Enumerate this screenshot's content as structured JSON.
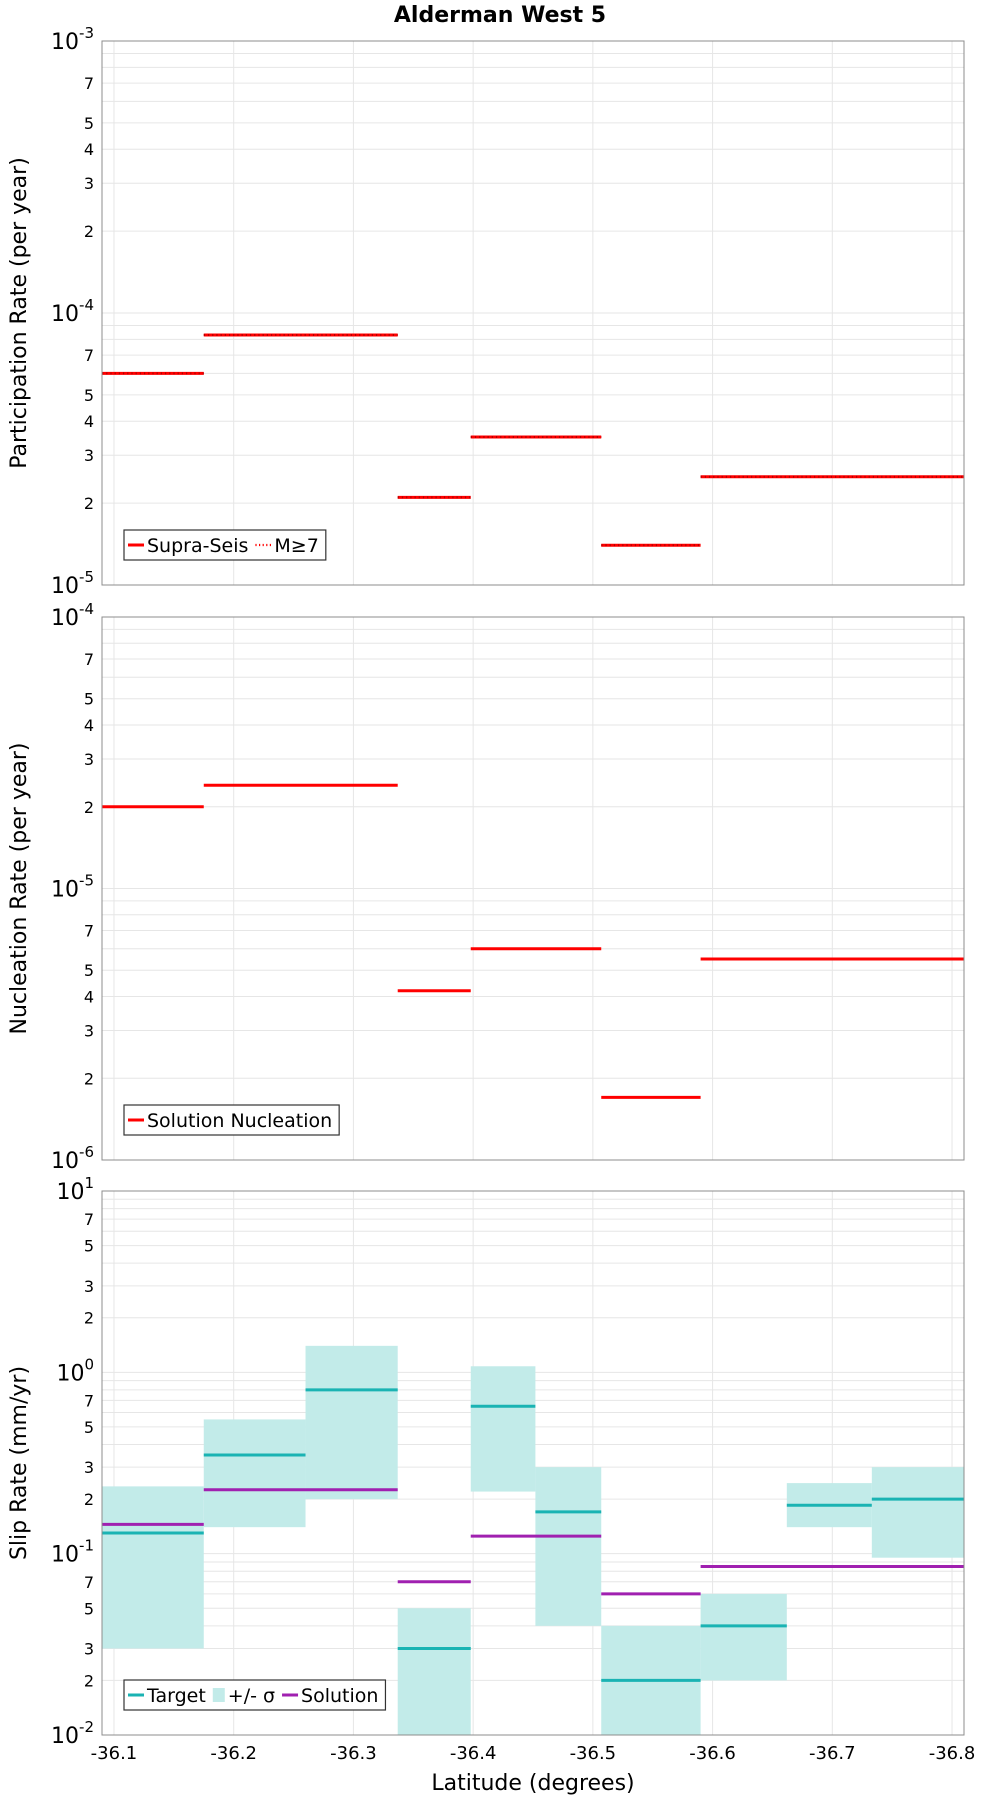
{
  "figure_title": "Alderman West 5",
  "xlabel": "Latitude (degrees)",
  "colors": {
    "red": "#ff0000",
    "teal": "#1ab3b3",
    "teal_band": "#c2ebe9",
    "magenta": "#a020b0"
  },
  "chart_data": [
    {
      "type": "line",
      "id": "participation",
      "title": "Alderman West 5",
      "ylabel": "Participation Rate (per year)",
      "xlabel": "Latitude (degrees)",
      "yscale": "log",
      "ylim": [
        1e-05,
        0.001
      ],
      "xlim": [
        -36.09,
        -36.81
      ],
      "decade_exponents": [
        -5,
        -4,
        -3
      ],
      "minor_tick_labels": [
        "2",
        "3",
        "4",
        "5",
        "7"
      ],
      "legend": {
        "position": "bottom-left",
        "entries": [
          "Supra-Seis",
          "M≥7"
        ]
      },
      "series": [
        {
          "name": "Supra-Seis",
          "color": "#ff0000",
          "segments": [
            {
              "x0": -36.09,
              "x1": -36.175,
              "y": 6e-05
            },
            {
              "x0": -36.175,
              "x1": -36.337,
              "y": 8.3e-05
            },
            {
              "x0": -36.337,
              "x1": -36.398,
              "y": 2.1e-05
            },
            {
              "x0": -36.398,
              "x1": -36.507,
              "y": 3.5e-05
            },
            {
              "x0": -36.507,
              "x1": -36.59,
              "y": 1.4e-05
            },
            {
              "x0": -36.59,
              "x1": -36.81,
              "y": 2.5e-05
            }
          ]
        },
        {
          "name": "M≥7",
          "color": "#ff0000",
          "style": "dotted",
          "segments": [
            {
              "x0": -36.09,
              "x1": -36.175,
              "y": 6e-05
            },
            {
              "x0": -36.175,
              "x1": -36.337,
              "y": 8.3e-05
            },
            {
              "x0": -36.337,
              "x1": -36.398,
              "y": 2.1e-05
            },
            {
              "x0": -36.398,
              "x1": -36.507,
              "y": 3.5e-05
            },
            {
              "x0": -36.507,
              "x1": -36.59,
              "y": 1.4e-05
            },
            {
              "x0": -36.59,
              "x1": -36.81,
              "y": 2.5e-05
            }
          ]
        }
      ]
    },
    {
      "type": "line",
      "id": "nucleation",
      "ylabel": "Nucleation Rate (per year)",
      "xlabel": "Latitude (degrees)",
      "yscale": "log",
      "ylim": [
        1e-06,
        0.0001
      ],
      "xlim": [
        -36.09,
        -36.81
      ],
      "decade_exponents": [
        -6,
        -5,
        -4
      ],
      "minor_tick_labels": [
        "2",
        "3",
        "4",
        "5",
        "7"
      ],
      "legend": {
        "position": "bottom-left",
        "entries": [
          "Solution Nucleation"
        ]
      },
      "series": [
        {
          "name": "Solution Nucleation",
          "color": "#ff0000",
          "segments": [
            {
              "x0": -36.09,
              "x1": -36.175,
              "y": 2e-05
            },
            {
              "x0": -36.175,
              "x1": -36.337,
              "y": 2.4e-05
            },
            {
              "x0": -36.337,
              "x1": -36.398,
              "y": 4.2e-06
            },
            {
              "x0": -36.398,
              "x1": -36.507,
              "y": 6e-06
            },
            {
              "x0": -36.507,
              "x1": -36.59,
              "y": 1.7e-06
            },
            {
              "x0": -36.59,
              "x1": -36.81,
              "y": 5.5e-06
            }
          ]
        }
      ]
    },
    {
      "type": "line",
      "id": "slip",
      "ylabel": "Slip Rate (mm/yr)",
      "xlabel": "Latitude (degrees)",
      "yscale": "log",
      "ylim": [
        0.01,
        10
      ],
      "xlim": [
        -36.09,
        -36.81
      ],
      "decade_exponents": [
        -2,
        -1,
        0,
        1
      ],
      "minor_tick_labels": [
        "2",
        "3",
        "5",
        "7"
      ],
      "x_ticks": [
        "-36.1",
        "-36.2",
        "-36.3",
        "-36.4",
        "-36.5",
        "-36.6",
        "-36.7",
        "-36.8"
      ],
      "x_tick_values": [
        -36.1,
        -36.2,
        -36.3,
        -36.4,
        -36.5,
        -36.6,
        -36.7,
        -36.8
      ],
      "legend": {
        "position": "bottom-left",
        "entries": [
          "Target",
          "+/- σ",
          "Solution"
        ]
      },
      "series": [
        {
          "name": "+/- σ",
          "color": "#c2ebe9",
          "kind": "band",
          "segments": [
            {
              "x0": -36.09,
              "x1": -36.175,
              "lo": 0.03,
              "hi": 0.235
            },
            {
              "x0": -36.175,
              "x1": -36.26,
              "lo": 0.14,
              "hi": 0.55
            },
            {
              "x0": -36.26,
              "x1": -36.337,
              "lo": 0.2,
              "hi": 1.4
            },
            {
              "x0": -36.337,
              "x1": -36.398,
              "lo": 0.01,
              "hi": 0.05
            },
            {
              "x0": -36.398,
              "x1": -36.452,
              "lo": 0.22,
              "hi": 1.08
            },
            {
              "x0": -36.452,
              "x1": -36.507,
              "lo": 0.04,
              "hi": 0.3
            },
            {
              "x0": -36.507,
              "x1": -36.59,
              "lo": 0.01,
              "hi": 0.04
            },
            {
              "x0": -36.59,
              "x1": -36.662,
              "lo": 0.02,
              "hi": 0.06
            },
            {
              "x0": -36.662,
              "x1": -36.733,
              "lo": 0.14,
              "hi": 0.245
            },
            {
              "x0": -36.733,
              "x1": -36.81,
              "lo": 0.095,
              "hi": 0.3
            }
          ]
        },
        {
          "name": "Target",
          "color": "#1ab3b3",
          "segments": [
            {
              "x0": -36.09,
              "x1": -36.175,
              "y": 0.13
            },
            {
              "x0": -36.175,
              "x1": -36.26,
              "y": 0.35
            },
            {
              "x0": -36.26,
              "x1": -36.337,
              "y": 0.8
            },
            {
              "x0": -36.337,
              "x1": -36.398,
              "y": 0.03
            },
            {
              "x0": -36.398,
              "x1": -36.452,
              "y": 0.65
            },
            {
              "x0": -36.452,
              "x1": -36.507,
              "y": 0.17
            },
            {
              "x0": -36.507,
              "x1": -36.59,
              "y": 0.02
            },
            {
              "x0": -36.59,
              "x1": -36.662,
              "y": 0.04
            },
            {
              "x0": -36.662,
              "x1": -36.733,
              "y": 0.185
            },
            {
              "x0": -36.733,
              "x1": -36.81,
              "y": 0.2
            }
          ]
        },
        {
          "name": "Solution",
          "color": "#a020b0",
          "segments": [
            {
              "x0": -36.09,
              "x1": -36.175,
              "y": 0.145
            },
            {
              "x0": -36.175,
              "x1": -36.337,
              "y": 0.225
            },
            {
              "x0": -36.337,
              "x1": -36.398,
              "y": 0.07
            },
            {
              "x0": -36.398,
              "x1": -36.507,
              "y": 0.125
            },
            {
              "x0": -36.507,
              "x1": -36.59,
              "y": 0.06
            },
            {
              "x0": -36.59,
              "x1": -36.81,
              "y": 0.085
            }
          ]
        }
      ]
    }
  ]
}
